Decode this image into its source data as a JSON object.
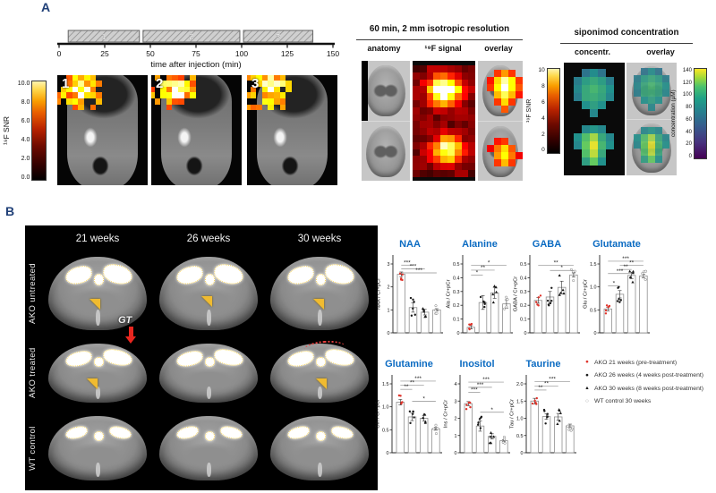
{
  "panelA": {
    "label": "A",
    "timeline": {
      "bars": [
        {
          "label": "1",
          "start": 5,
          "end": 44
        },
        {
          "label": "2",
          "start": 46,
          "end": 99
        },
        {
          "label": "3",
          "start": 101,
          "end": 139
        }
      ],
      "ticks": [
        "0",
        "25",
        "50",
        "75",
        "100",
        "125",
        "150"
      ],
      "max": 150,
      "axis_label": "time after injection (min)"
    },
    "snr_left": {
      "label": "¹⁹F SNR",
      "ticks": [
        "10.0",
        "8.0",
        "6.0",
        "4.0",
        "2.0",
        "0.0"
      ]
    },
    "frames": [
      "1",
      "2",
      "3"
    ],
    "section60": {
      "title": "60 min, 2 mm isotropic resolution",
      "headers": [
        "anatomy",
        "¹⁹F signal",
        "overlay"
      ]
    },
    "snr_mid": {
      "label": "¹⁹F SNR",
      "ticks": [
        "10",
        "8",
        "6",
        "4",
        "2",
        "0"
      ]
    },
    "siponimod": {
      "title": "siponimod concentration",
      "headers": [
        "concentr.",
        "overlay"
      ]
    },
    "conc_bar": {
      "label": "concentration (µM)",
      "ticks": [
        "140",
        "120",
        "100",
        "80",
        "60",
        "40",
        "20",
        "0"
      ]
    }
  },
  "panelB": {
    "label": "B",
    "grid": {
      "col_headers": [
        "21 weeks",
        "26 weeks",
        "30 weeks"
      ],
      "row_labels": [
        "AKO untreated",
        "AKO treated",
        "WT control"
      ],
      "gt_label": "GT"
    },
    "legend": [
      {
        "label": "AKO 21 weeks (pre-treatment)",
        "marker": "dot",
        "color": "#e0342b"
      },
      {
        "label": "AKO 26 weeks (4 weeks post-treatment)",
        "marker": "dot",
        "color": "#1a1a1a"
      },
      {
        "label": "AKO 30 weeks (8 weeks post-treatment)",
        "marker": "triangle",
        "color": "#1a1a1a"
      },
      {
        "label": "WT control 30 weeks",
        "marker": "open-circle",
        "color": "#8c8c8c"
      }
    ]
  },
  "chart_data": {
    "type": "bar",
    "group_labels": [
      "AKO 21 weeks",
      "AKO 26 weeks",
      "AKO 30 weeks",
      "WT control 30 weeks"
    ],
    "point_counts": [
      5,
      6,
      5,
      4
    ],
    "point_styles": [
      "red-dot",
      "black-dot",
      "black-triangle",
      "open-circle"
    ],
    "charts": [
      {
        "title": "NAA",
        "ylabel": "NAA / Cr+pCr",
        "ymax": 3,
        "yticks": [
          "0",
          "1",
          "2",
          "3"
        ],
        "values": [
          2.55,
          1.1,
          0.9,
          1.0
        ],
        "errors": [
          0.1,
          0.2,
          0.12,
          0.05
        ],
        "sig": [
          {
            "a": 0,
            "b": 1,
            "stars": "***",
            "y": 2.95
          },
          {
            "a": 0,
            "b": 2,
            "stars": "***",
            "y": 2.78
          },
          {
            "a": 0,
            "b": 3,
            "stars": "***",
            "y": 2.61
          }
        ]
      },
      {
        "title": "Alanine",
        "ylabel": "Ala / Cr+pCr",
        "ymax": 0.5,
        "yticks": [
          "0",
          "0.1",
          "0.2",
          "0.3",
          "0.4",
          "0.5"
        ],
        "values": [
          0.04,
          0.22,
          0.29,
          0.21
        ],
        "errors": [
          0.012,
          0.05,
          0.04,
          0.03
        ],
        "sig": [
          {
            "a": 0,
            "b": 3,
            "stars": "*",
            "y": 0.49
          },
          {
            "a": 0,
            "b": 2,
            "stars": "**",
            "y": 0.455
          },
          {
            "a": 0,
            "b": 1,
            "stars": "*",
            "y": 0.42
          }
        ]
      },
      {
        "title": "GABA",
        "ylabel": "GABA / Cr+pCr",
        "ymax": 0.5,
        "yticks": [
          "0",
          "0.1",
          "0.2",
          "0.3",
          "0.4",
          "0.5"
        ],
        "values": [
          0.235,
          0.26,
          0.33,
          0.42
        ],
        "errors": [
          0.02,
          0.04,
          0.045,
          0.015
        ],
        "sig": [
          {
            "a": 0,
            "b": 3,
            "stars": "**",
            "y": 0.49
          },
          {
            "a": 1,
            "b": 3,
            "stars": "*",
            "y": 0.453
          }
        ]
      },
      {
        "title": "Glutamate",
        "ylabel": "Glu / Cr+pCr",
        "ymax": 1.5,
        "yticks": [
          "0",
          "0.5",
          "1.0",
          "1.5"
        ],
        "values": [
          0.52,
          0.84,
          1.25,
          1.24
        ],
        "errors": [
          0.04,
          0.08,
          0.07,
          0.04
        ],
        "sig": [
          {
            "a": 0,
            "b": 3,
            "stars": "***",
            "y": 1.56
          },
          {
            "a": 1,
            "b": 3,
            "stars": "**",
            "y": 1.47
          },
          {
            "a": 1,
            "b": 2,
            "stars": "**",
            "y": 1.38
          },
          {
            "a": 0,
            "b": 2,
            "stars": "***",
            "y": 1.29
          },
          {
            "a": 0,
            "b": 1,
            "stars": "*",
            "y": 1.02
          }
        ]
      },
      {
        "title": "Glutamine",
        "ylabel": "Gln / Cr+pCr",
        "ymax": 1.5,
        "yticks": [
          "0",
          "0.5",
          "1.0",
          "1.5"
        ],
        "values": [
          1.1,
          0.78,
          0.75,
          0.52
        ],
        "errors": [
          0.06,
          0.08,
          0.06,
          0.03
        ],
        "sig": [
          {
            "a": 0,
            "b": 3,
            "stars": "***",
            "y": 1.56
          },
          {
            "a": 0,
            "b": 2,
            "stars": "**",
            "y": 1.47
          },
          {
            "a": 0,
            "b": 1,
            "stars": "**",
            "y": 1.38
          },
          {
            "a": 1,
            "b": 3,
            "stars": "*",
            "y": 1.12
          }
        ]
      },
      {
        "title": "Inositol",
        "ylabel": "Ins / Cr+pCr",
        "ymax": 4,
        "yticks": [
          "0",
          "1",
          "2",
          "3",
          "4"
        ],
        "values": [
          2.85,
          1.55,
          0.95,
          0.7
        ],
        "errors": [
          0.12,
          0.3,
          0.15,
          0.05
        ],
        "sig": [
          {
            "a": 0,
            "b": 3,
            "stars": "***",
            "y": 4.1
          },
          {
            "a": 0,
            "b": 2,
            "stars": "***",
            "y": 3.8
          },
          {
            "a": 0,
            "b": 1,
            "stars": "***",
            "y": 3.5
          },
          {
            "a": 1,
            "b": 3,
            "stars": "*",
            "y": 2.35
          }
        ]
      },
      {
        "title": "Taurine",
        "ylabel": "Tau / Cr+pCr",
        "ymax": 2,
        "yticks": [
          "0",
          "0.5",
          "1.0",
          "1.5",
          "2.0"
        ],
        "values": [
          1.5,
          1.05,
          1.04,
          0.78
        ],
        "errors": [
          0.08,
          0.08,
          0.1,
          0.05
        ],
        "sig": [
          {
            "a": 0,
            "b": 3,
            "stars": "***",
            "y": 2.06
          },
          {
            "a": 0,
            "b": 2,
            "stars": "**",
            "y": 1.94
          },
          {
            "a": 0,
            "b": 1,
            "stars": "**",
            "y": 1.82
          }
        ]
      }
    ]
  },
  "colors": {
    "accent_blue": "#0b6bc2",
    "panel_label_blue": "#1f3f77",
    "red": "#e0342b",
    "gold": "#f0bb30",
    "hot_low": "#000000",
    "hot_high": "#fff3b0",
    "viridis_low": "#440154",
    "viridis_high": "#fde725"
  }
}
